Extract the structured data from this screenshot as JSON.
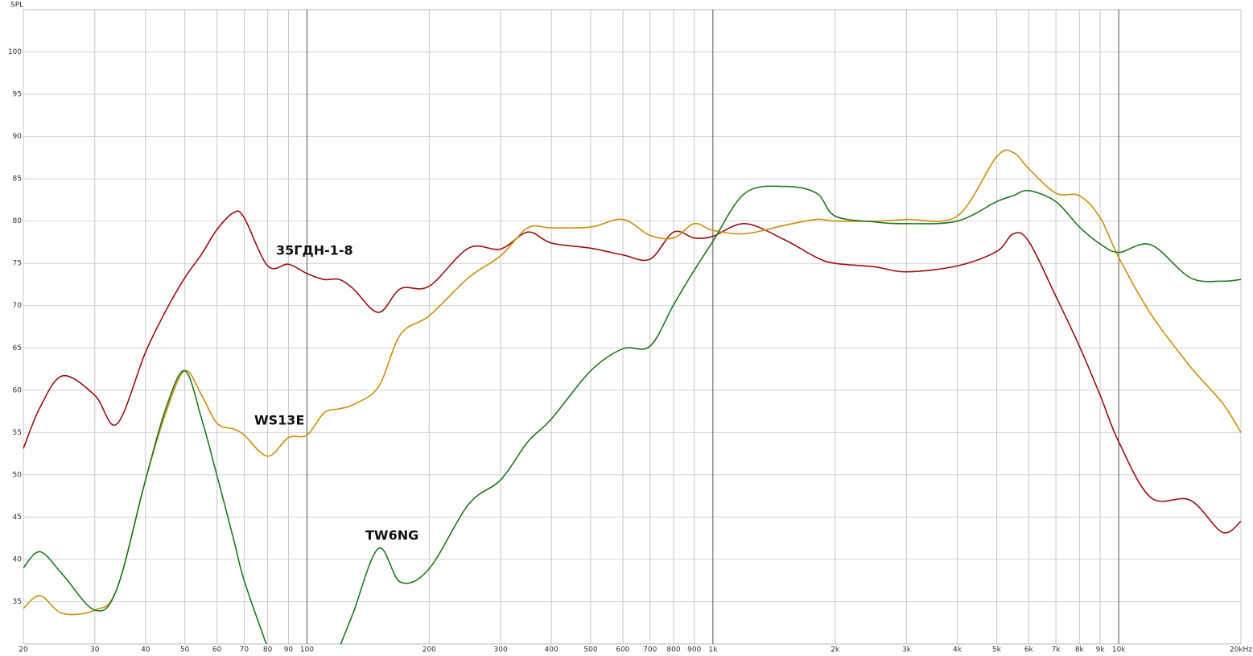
{
  "chart_data": {
    "type": "line",
    "ylabel": "SPL",
    "log_x": true,
    "grid": true,
    "xlim": [
      20,
      20000
    ],
    "ylim": [
      30,
      105
    ],
    "yticks": [
      35,
      40,
      45,
      50,
      55,
      60,
      65,
      70,
      75,
      80,
      85,
      90,
      95,
      100
    ],
    "xticks": [
      20,
      30,
      40,
      50,
      60,
      70,
      80,
      90,
      100,
      200,
      300,
      400,
      500,
      600,
      700,
      800,
      900,
      {
        "value": 1000,
        "label": "1k"
      },
      {
        "value": 2000,
        "label": "2k"
      },
      {
        "value": 3000,
        "label": "3k"
      },
      {
        "value": 4000,
        "label": "4k"
      },
      {
        "value": 5000,
        "label": "5k"
      },
      {
        "value": 6000,
        "label": "6k"
      },
      {
        "value": 7000,
        "label": "7k"
      },
      {
        "value": 8000,
        "label": "8k"
      },
      {
        "value": 9000,
        "label": "9k"
      },
      {
        "value": 10000,
        "label": "10k"
      },
      {
        "value": 20000,
        "label": "20kHz"
      }
    ],
    "x": [
      20,
      22,
      25,
      30,
      34,
      40,
      45,
      50,
      55,
      60,
      66,
      70,
      80,
      90,
      100,
      110,
      120,
      130,
      150,
      170,
      200,
      250,
      300,
      350,
      400,
      500,
      600,
      700,
      800,
      900,
      1000,
      1200,
      1500,
      1800,
      2000,
      2500,
      3000,
      4000,
      5000,
      5500,
      6000,
      7000,
      8000,
      9000,
      10000,
      12000,
      15000,
      18000,
      20000
    ],
    "series": [
      {
        "name": "35ГДН-1-8",
        "color": "#9e1010",
        "values": [
          53.1,
          58,
          61.7,
          59.4,
          56,
          64.5,
          69.5,
          73.3,
          76.1,
          79,
          81,
          80.4,
          74.7,
          74.9,
          73.8,
          73.1,
          73.1,
          72,
          69.2,
          72,
          72.3,
          76.8,
          76.7,
          78.7,
          77.4,
          76.8,
          76,
          75.5,
          78.7,
          78,
          78.2,
          79.7,
          77.8,
          75.7,
          75,
          74.6,
          74,
          74.7,
          76.4,
          78.5,
          77.6,
          71.1,
          65.2,
          59.4,
          53.9,
          47.3,
          47,
          43.2,
          44.5
        ]
      },
      {
        "name": "WS13E",
        "color": "#d08d0c",
        "values": [
          34.2,
          35.7,
          33.6,
          34,
          36.5,
          49.4,
          57.5,
          62.3,
          59.4,
          56.1,
          55.4,
          54.7,
          52.2,
          54.4,
          54.7,
          57.3,
          57.8,
          58.3,
          60.4,
          66.6,
          68.8,
          73.3,
          75.9,
          79.2,
          79.2,
          79.3,
          80.2,
          78.3,
          78,
          79.7,
          78.9,
          78.5,
          79.5,
          80.2,
          80,
          80,
          80.2,
          80.6,
          87.6,
          88.1,
          86.2,
          83.3,
          83,
          80.4,
          75.7,
          69,
          62.8,
          58.5,
          55
        ]
      },
      {
        "name": "TW6NG",
        "color": "#1f7a1f",
        "values": [
          39,
          40.9,
          38.2,
          34,
          36.5,
          49.4,
          58,
          62.3,
          56.6,
          49.9,
          42.3,
          37.5,
          29.5,
          null,
          null,
          null,
          29.5,
          33.7,
          41.3,
          37.3,
          38.9,
          46.5,
          49.4,
          53.9,
          56.6,
          62.3,
          64.9,
          65.2,
          70.1,
          74.2,
          77.6,
          83.3,
          84.1,
          83.3,
          80.6,
          79.9,
          79.7,
          80,
          82.3,
          83,
          83.6,
          82.3,
          79.3,
          77.3,
          76.3,
          77.2,
          73.3,
          72.9,
          73.1
        ]
      }
    ]
  }
}
